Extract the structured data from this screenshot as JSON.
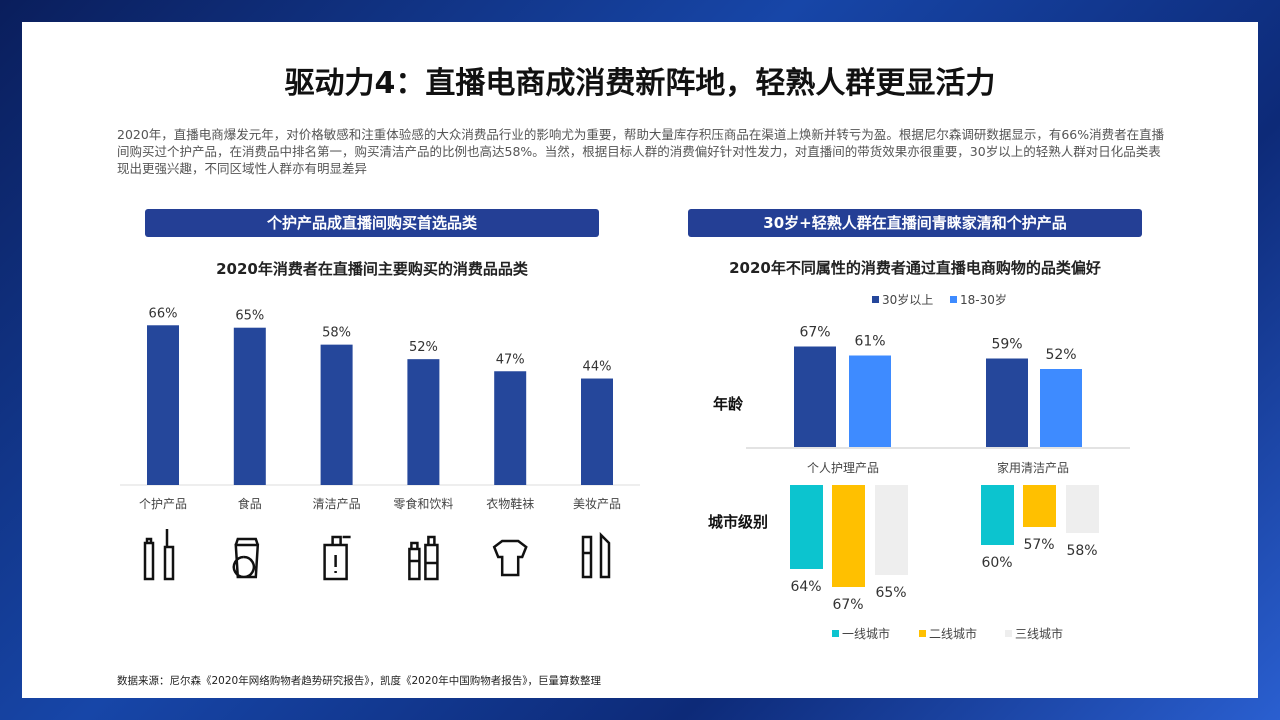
{
  "title": "驱动力4：直播电商成消费新阵地，轻熟人群更显活力",
  "intro": "2020年，直播电商爆发元年，对价格敏感和注重体验感的大众消费品行业的影响尤为重要，帮助大量库存积压商品在渠道上焕新并转亏为盈。根据尼尔森调研数据显示，有66%消费者在直播间购买过个护产品，在消费品中排名第一，购买清洁产品的比例也高达58%。当然，根据目标人群的消费偏好针对性发力，对直播间的带货效果亦很重要，30岁以上的轻熟人群对日化品类表现出更强兴趣，不同区域性人群亦有明显差异",
  "left_banner": "个护产品成直播间购买首选品类",
  "right_banner": "30岁+轻熟人群在直播间青睐家清和个护产品",
  "source": "数据来源：尼尔森《2020年网络购物者趋势研究报告》，凯度《2020年中国购物者报告》，巨量算数整理",
  "chart_data": [
    {
      "type": "bar",
      "title": "2020年消费者在直播间主要购买的消费品品类",
      "categories": [
        "个护产品",
        "食品",
        "清洁产品",
        "零食和饮料",
        "衣物鞋袜",
        "美妆产品"
      ],
      "values": [
        66,
        65,
        58,
        52,
        47,
        44
      ],
      "labels": [
        "66%",
        "65%",
        "58%",
        "52%",
        "47%",
        "44%"
      ],
      "icons": [
        "lotion-toothbrush-icon",
        "food-icon",
        "cleaning-bottle-icon",
        "drinks-icon",
        "clothing-icon",
        "makeup-icon"
      ],
      "color": "#25479b"
    },
    {
      "type": "bar",
      "title": "2020年不同属性的消费者通过直播电商购物的品类偏好",
      "categories": [
        "个人护理产品",
        "家用清洁产品"
      ],
      "age": {
        "label": "年龄"
      },
      "age_series": [
        {
          "name": "30岁以上",
          "color": "#25479b",
          "values": [
            67,
            59
          ],
          "labels": [
            "67%",
            "59%"
          ]
        },
        {
          "name": "18-30岁",
          "color": "#3e8bff",
          "values": [
            61,
            52
          ],
          "labels": [
            "61%",
            "52%"
          ]
        }
      ],
      "city_label": "城市级别",
      "city_series": [
        {
          "name": "一线城市",
          "color": "#0cc4cf",
          "values": [
            64,
            60
          ],
          "labels": [
            "64%",
            "60%"
          ]
        },
        {
          "name": "二线城市",
          "color": "#ffc000",
          "values": [
            67,
            57
          ],
          "labels": [
            "67%",
            "57%"
          ]
        },
        {
          "name": "三线城市",
          "color": "#eeeeee",
          "values": [
            65,
            58
          ],
          "labels": [
            "65%",
            "58%"
          ]
        }
      ]
    }
  ]
}
